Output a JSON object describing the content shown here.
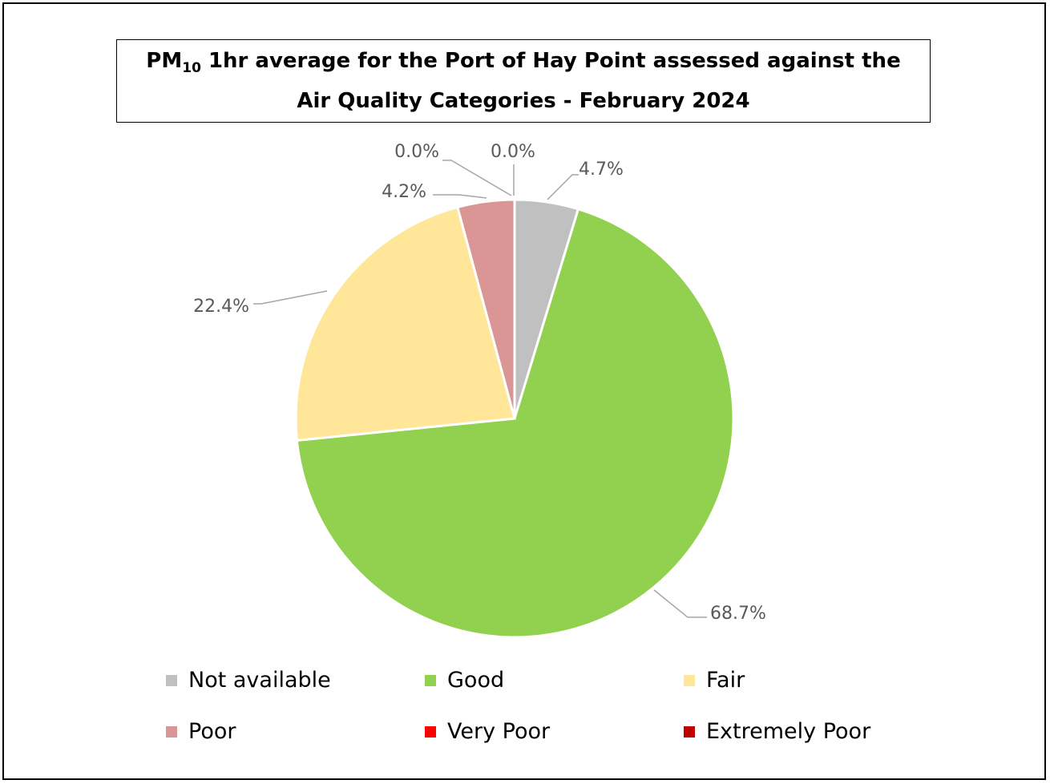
{
  "chart_data": {
    "type": "pie",
    "title_prefix": "PM",
    "title_subscript": "10",
    "title_line1_rest": " 1hr average for the Port of Hay Point assessed against the",
    "title_line2": "Air Quality Categories - February 2024",
    "slices": [
      {
        "name": "Not available",
        "value": 4.7,
        "label": "4.7%",
        "color": "#c0c0c0"
      },
      {
        "name": "Good",
        "value": 68.7,
        "label": "68.7%",
        "color": "#92d050"
      },
      {
        "name": "Fair",
        "value": 22.4,
        "label": "22.4%",
        "color": "#ffe699"
      },
      {
        "name": "Poor",
        "value": 4.2,
        "label": "4.2%",
        "color": "#da9694"
      },
      {
        "name": "Very Poor",
        "value": 0.0,
        "label": "0.0%",
        "color": "#ff0000"
      },
      {
        "name": "Extremely Poor",
        "value": 0.0,
        "label": "0.0%",
        "color": "#c00000"
      }
    ],
    "legend_position": "bottom"
  }
}
